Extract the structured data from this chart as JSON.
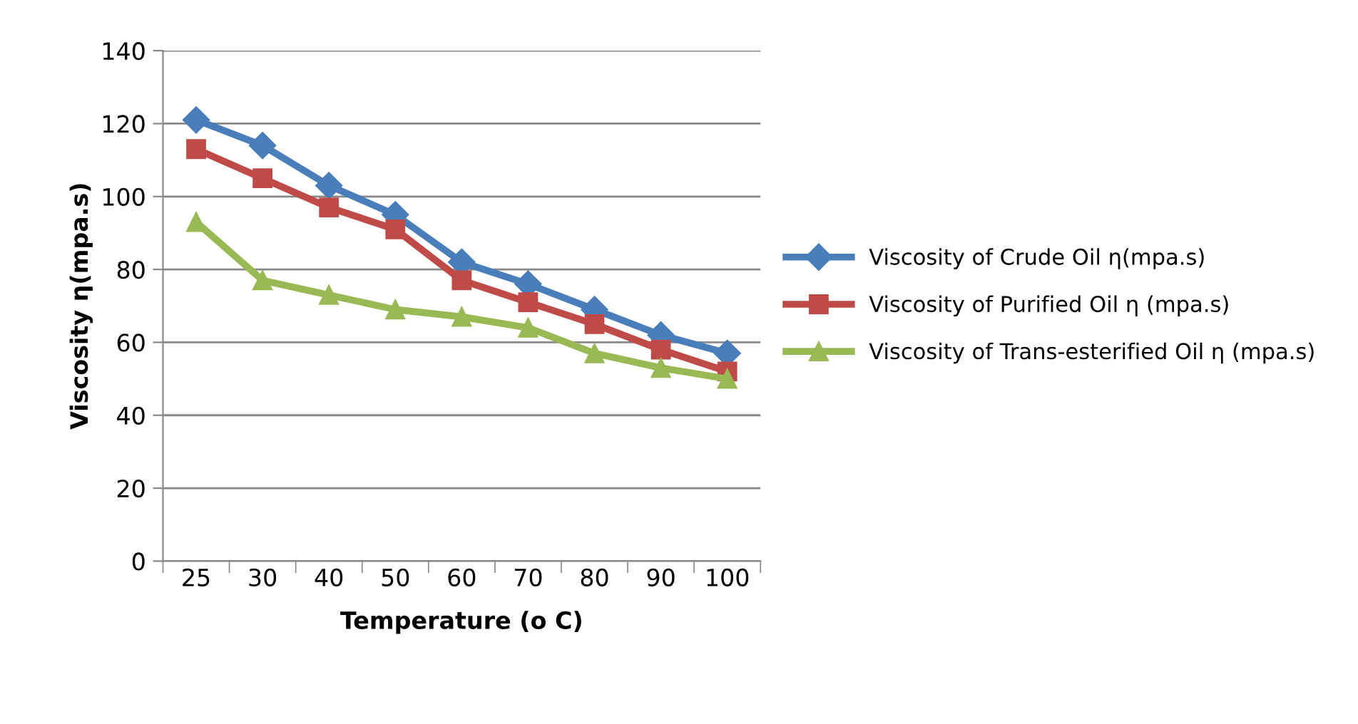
{
  "chart_data": {
    "type": "line",
    "xlabel": "Temperature (o C)",
    "ylabel": "Viscosity η(mpa.s)",
    "categories": [
      "25",
      "30",
      "40",
      "50",
      "60",
      "70",
      "80",
      "90",
      "100"
    ],
    "ylim": [
      0,
      140
    ],
    "yticks": [
      0,
      20,
      40,
      60,
      80,
      100,
      120,
      140
    ],
    "grid": "y",
    "legend": "right",
    "series": [
      {
        "name": "Viscosity of Crude Oil η(mpa.s)",
        "color": "#4a7ebb",
        "marker": "diamond",
        "values": [
          121,
          114,
          103,
          95,
          82,
          76,
          69,
          62,
          57
        ]
      },
      {
        "name": "Viscosity of Purified Oil η (mpa.s)",
        "color": "#be4b48",
        "marker": "square",
        "values": [
          113,
          105,
          97,
          91,
          77,
          71,
          65,
          58,
          52
        ]
      },
      {
        "name": "Viscosity of Trans-esterified Oil η (mpa.s)",
        "color": "#98b954",
        "marker": "triangle",
        "values": [
          93,
          77,
          73,
          69,
          67,
          64,
          57,
          53,
          50
        ]
      }
    ]
  }
}
